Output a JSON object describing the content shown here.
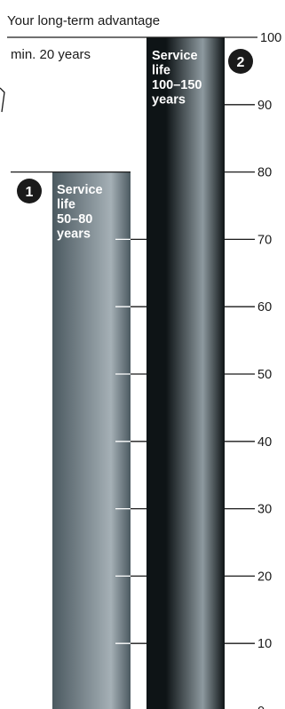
{
  "chart_data": {
    "type": "bar",
    "title": "Your long-term advantage",
    "subtitle": "min. 20 years",
    "ylim": [
      0,
      100
    ],
    "yticks": [
      0,
      10,
      20,
      30,
      40,
      50,
      60,
      70,
      80,
      90,
      100
    ],
    "grid": false,
    "categories": [
      "1",
      "2"
    ],
    "values": [
      80,
      100
    ],
    "bars": [
      {
        "number": "1",
        "value": 80,
        "label_lines": [
          "Service",
          "life",
          "50–80",
          "years"
        ]
      },
      {
        "number": "2",
        "value": 100,
        "label_lines": [
          "Service",
          "life",
          "100–150",
          "years"
        ]
      }
    ],
    "colors": {
      "bar1_dark": "#4b5960",
      "bar1_light": "#a5b0b6",
      "bar2_dark": "#0e1416",
      "bar2_light": "#8d999f",
      "ink": "#1a1a1a"
    }
  }
}
